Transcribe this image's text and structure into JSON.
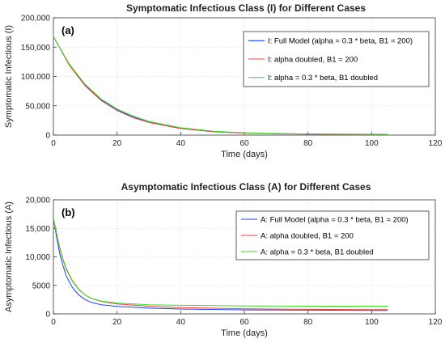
{
  "chart_data": [
    {
      "type": "line",
      "title": "Symptomatic Infectious Class (I) for Different Cases",
      "panel_label": "(a)",
      "xlabel": "Time (days)",
      "ylabel": "Symptomatic Infectious (I)",
      "xlim": [
        0,
        120
      ],
      "ylim": [
        0,
        200000
      ],
      "xticks": [
        "0",
        "20",
        "40",
        "60",
        "80",
        "100",
        "120"
      ],
      "yticks": [
        "0",
        "50,000",
        "100,000",
        "150,000",
        "200,000"
      ],
      "grid": true,
      "legend_position": "top-right",
      "x": [
        0,
        5,
        10,
        15,
        20,
        25,
        30,
        40,
        50,
        60,
        70,
        80,
        90,
        100,
        105
      ],
      "series": [
        {
          "name": "I: Full Model (alpha = 0.3 * beta, B1 = 200)",
          "color": "#1f3fff",
          "values": [
            168000,
            120000,
            85000,
            60000,
            43000,
            31000,
            22000,
            11500,
            6000,
            3500,
            2300,
            1700,
            1300,
            1100,
            1000
          ]
        },
        {
          "name": "I: alpha doubled, B1 = 200",
          "color": "#e8413a",
          "values": [
            168000,
            119000,
            84000,
            59000,
            42000,
            30000,
            21500,
            11200,
            5900,
            3400,
            2200,
            1600,
            1250,
            1050,
            950
          ]
        },
        {
          "name": "I: alpha = 0.3 * beta, B1 doubled",
          "color": "#3ddc2c",
          "values": [
            168000,
            121000,
            86500,
            61500,
            44500,
            32500,
            23500,
            12500,
            6800,
            4000,
            2700,
            2000,
            1600,
            1400,
            1300
          ]
        }
      ]
    },
    {
      "type": "line",
      "title": "Asymptomatic Infectious Class (A) for Different Cases",
      "panel_label": "(b)",
      "xlabel": "Time (days)",
      "ylabel": "Asymptomatic Infectious (A)",
      "xlim": [
        0,
        120
      ],
      "ylim": [
        0,
        20000
      ],
      "xticks": [
        "0",
        "20",
        "40",
        "60",
        "80",
        "100",
        "120"
      ],
      "yticks": [
        "0",
        "5000",
        "10,000",
        "15,000",
        "20,000"
      ],
      "grid": true,
      "legend_position": "top-right",
      "x": [
        0,
        1,
        2,
        3,
        4,
        6,
        8,
        10,
        12,
        15,
        20,
        30,
        40,
        60,
        80,
        100,
        105
      ],
      "series": [
        {
          "name": "A: Full Model (alpha = 0.3 * beta, B1 = 200)",
          "color": "#1f3fff",
          "values": [
            16800,
            13500,
            10500,
            8500,
            6700,
            4600,
            3300,
            2500,
            2000,
            1600,
            1300,
            1000,
            850,
            700,
            650,
            600,
            600
          ]
        },
        {
          "name": "A: alpha doubled, B1 = 200",
          "color": "#e8413a",
          "values": [
            16800,
            14200,
            11600,
            9600,
            8000,
            5800,
            4300,
            3300,
            2700,
            2200,
            1750,
            1350,
            1100,
            900,
            800,
            750,
            750
          ]
        },
        {
          "name": "A: alpha = 0.3 * beta, B1 doubled",
          "color": "#3ddc2c",
          "values": [
            16800,
            14100,
            11400,
            9400,
            7800,
            5700,
            4200,
            3300,
            2700,
            2250,
            1900,
            1600,
            1500,
            1400,
            1350,
            1350,
            1350
          ]
        }
      ]
    }
  ]
}
